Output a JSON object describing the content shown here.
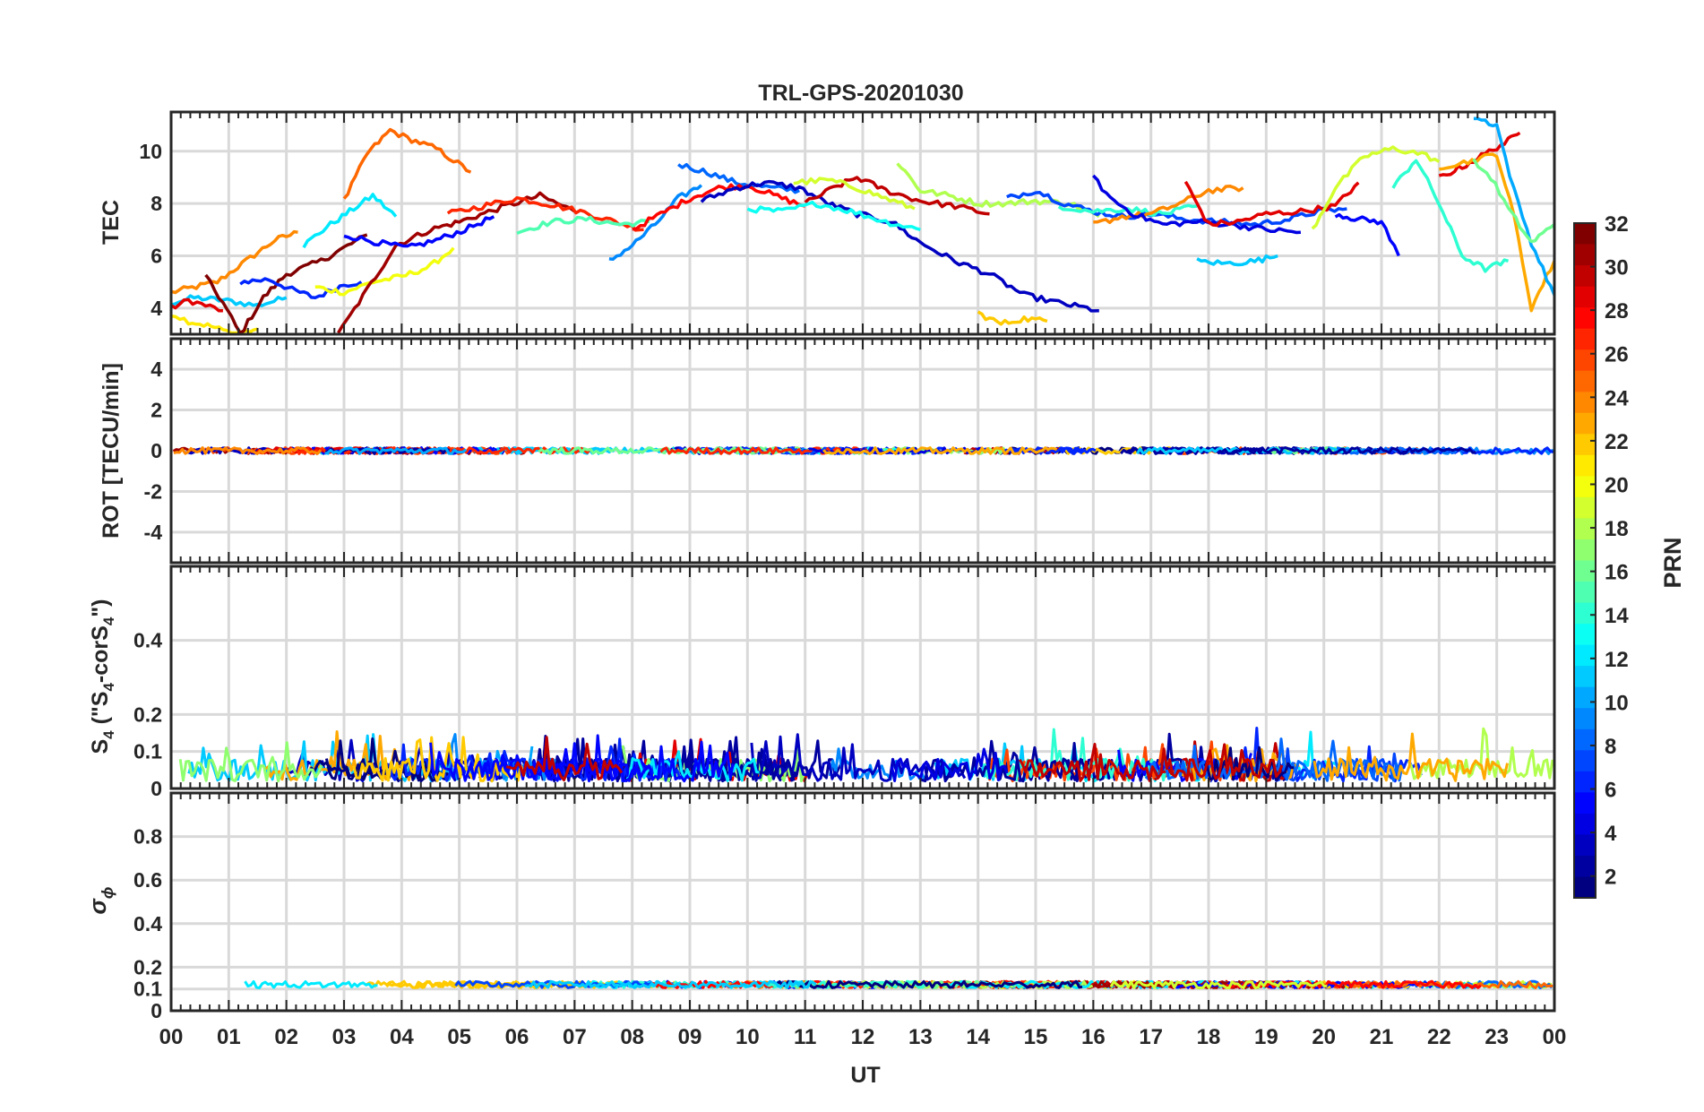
{
  "figure": {
    "title": "TRL-GPS-20201030",
    "xlabel": "UT",
    "x_ticks": [
      "00",
      "01",
      "02",
      "03",
      "04",
      "05",
      "06",
      "07",
      "08",
      "09",
      "10",
      "11",
      "12",
      "13",
      "14",
      "15",
      "16",
      "17",
      "18",
      "19",
      "20",
      "21",
      "22",
      "23",
      "00"
    ],
    "colorbar": {
      "label": "PRN",
      "range": [
        1,
        32
      ],
      "ticks": [
        "32",
        "30",
        "28",
        "26",
        "24",
        "22",
        "20",
        "18",
        "16",
        "14",
        "12",
        "10",
        "8",
        "6",
        "4",
        "2"
      ],
      "colormap": "jet"
    }
  },
  "chart_data": [
    {
      "type": "line",
      "id": "tec",
      "ylabel": "TEC",
      "ylim": [
        3,
        11.5
      ],
      "y_ticks": [
        "10",
        "8",
        "6",
        "4"
      ],
      "xlim_hours": [
        0,
        24
      ],
      "series": [
        {
          "prn": 24,
          "t": [
            0.0,
            0.8,
            1.3,
            1.8,
            2.2
          ],
          "v": [
            4.6,
            5.0,
            5.8,
            6.6,
            6.9
          ]
        },
        {
          "prn": 11,
          "t": [
            0.0,
            0.4,
            0.9,
            1.5,
            2.0
          ],
          "v": [
            4.2,
            4.4,
            4.3,
            4.1,
            4.4
          ]
        },
        {
          "prn": 21,
          "t": [
            0.0,
            0.3,
            0.7,
            1.1,
            1.5
          ],
          "v": [
            3.8,
            3.5,
            3.3,
            3.0,
            3.2
          ]
        },
        {
          "prn": 29,
          "t": [
            0.0,
            0.3,
            0.6,
            0.9
          ],
          "v": [
            4.0,
            4.3,
            4.1,
            3.9
          ]
        },
        {
          "prn": 32,
          "t": [
            0.6,
            0.9,
            1.2,
            1.6,
            2.0,
            2.6,
            3.0,
            3.4
          ],
          "v": [
            5.2,
            4.2,
            3.0,
            4.4,
            5.3,
            5.8,
            6.3,
            6.8
          ]
        },
        {
          "prn": 6,
          "t": [
            1.2,
            1.7,
            2.1,
            2.5,
            3.0,
            3.3
          ],
          "v": [
            5.0,
            5.1,
            4.7,
            4.4,
            4.9,
            5.0
          ]
        },
        {
          "prn": 12,
          "t": [
            2.3,
            2.7,
            3.1,
            3.5,
            3.9
          ],
          "v": [
            6.4,
            7.1,
            7.7,
            8.3,
            7.5
          ]
        },
        {
          "prn": 20,
          "t": [
            2.5,
            3.0,
            3.5,
            4.0,
            4.5,
            4.9
          ],
          "v": [
            4.8,
            4.6,
            5.0,
            5.2,
            5.6,
            6.3
          ]
        },
        {
          "prn": 25,
          "t": [
            3.0,
            3.4,
            3.8,
            4.1,
            4.6,
            5.2
          ],
          "v": [
            8.1,
            9.9,
            10.8,
            10.5,
            10.1,
            9.2
          ]
        },
        {
          "prn": 31,
          "t": [
            2.9,
            3.4,
            3.9,
            4.5,
            5.0,
            5.8,
            6.4,
            7.0
          ],
          "v": [
            3.0,
            4.7,
            6.4,
            7.0,
            7.3,
            7.9,
            8.3,
            7.7
          ]
        },
        {
          "prn": 5,
          "t": [
            3.0,
            3.6,
            4.1,
            4.6,
            5.1,
            5.6
          ],
          "v": [
            6.8,
            6.5,
            6.3,
            6.6,
            7.0,
            7.5
          ]
        },
        {
          "prn": 27,
          "t": [
            4.8,
            5.4,
            6.0,
            6.5,
            7.1,
            7.7,
            8.2
          ],
          "v": [
            7.6,
            7.9,
            8.2,
            8.0,
            7.7,
            7.3,
            7.0
          ]
        },
        {
          "prn": 15,
          "t": [
            6.0,
            6.6,
            7.2,
            7.8,
            8.3
          ],
          "v": [
            6.9,
            7.3,
            7.4,
            7.2,
            7.3
          ]
        },
        {
          "prn": 9,
          "t": [
            7.6,
            8.0,
            8.4,
            8.8,
            9.2
          ],
          "v": [
            5.8,
            6.4,
            7.2,
            8.2,
            8.7
          ]
        },
        {
          "prn": 8,
          "t": [
            8.8,
            9.3,
            9.8,
            10.4,
            10.9
          ],
          "v": [
            9.5,
            9.2,
            8.8,
            8.6,
            8.5
          ]
        },
        {
          "prn": 28,
          "t": [
            8.0,
            8.5,
            9.0,
            9.5,
            10.0,
            10.6,
            11.0
          ],
          "v": [
            7.0,
            7.6,
            8.2,
            8.6,
            8.7,
            8.2,
            7.9
          ]
        },
        {
          "prn": 3,
          "t": [
            9.2,
            9.8,
            10.3,
            10.9,
            11.4,
            11.9,
            12.5,
            13.0,
            13.6,
            14.2,
            14.8,
            15.4,
            16.1
          ],
          "v": [
            8.1,
            8.6,
            8.8,
            8.6,
            8.0,
            7.6,
            7.3,
            6.5,
            5.8,
            5.3,
            4.5,
            4.2,
            3.9
          ]
        },
        {
          "prn": 30,
          "t": [
            11.0,
            11.5,
            11.9,
            12.4,
            13.0,
            13.6,
            14.2
          ],
          "v": [
            8.0,
            8.6,
            9.0,
            8.5,
            8.1,
            7.9,
            7.6
          ]
        },
        {
          "prn": 19,
          "t": [
            10.8,
            11.4,
            11.9,
            12.4,
            12.9
          ],
          "v": [
            8.8,
            8.9,
            8.6,
            8.2,
            7.8
          ]
        },
        {
          "prn": 13,
          "t": [
            10.0,
            10.6,
            11.2,
            11.8,
            12.4,
            13.0
          ],
          "v": [
            7.8,
            7.7,
            8.0,
            7.7,
            7.3,
            7.0
          ]
        },
        {
          "prn": 18,
          "t": [
            12.6,
            13.0,
            13.5,
            14.0,
            14.5,
            15.0,
            15.6,
            16.1
          ],
          "v": [
            9.6,
            8.5,
            8.3,
            8.0,
            8.0,
            8.1,
            8.0,
            7.5
          ]
        },
        {
          "prn": 7,
          "t": [
            14.5,
            15.0,
            15.5,
            16.0,
            16.5,
            17.0,
            17.6,
            18.2,
            18.8,
            19.4,
            19.9,
            20.4
          ],
          "v": [
            8.2,
            8.5,
            8.0,
            7.7,
            7.5,
            7.6,
            7.4,
            7.3,
            7.2,
            7.4,
            7.7,
            7.8
          ]
        },
        {
          "prn": 22,
          "t": [
            14.0,
            14.4,
            14.8,
            15.2
          ],
          "v": [
            3.8,
            3.4,
            3.6,
            3.5
          ]
        },
        {
          "prn": 14,
          "t": [
            15.4,
            16.0,
            16.6,
            17.2,
            17.8
          ],
          "v": [
            7.9,
            7.7,
            7.8,
            7.6,
            7.9
          ]
        },
        {
          "prn": 24,
          "t": [
            16.0,
            16.5,
            17.0,
            17.5,
            18.0,
            18.6
          ],
          "v": [
            7.2,
            7.5,
            7.6,
            8.0,
            8.5,
            8.6
          ]
        },
        {
          "prn": 4,
          "t": [
            16.0,
            16.3,
            16.7,
            17.2,
            17.8,
            18.4,
            19.0,
            19.6
          ],
          "v": [
            9.0,
            8.2,
            7.6,
            7.2,
            7.3,
            7.2,
            7.0,
            6.9
          ]
        },
        {
          "prn": 29,
          "t": [
            17.6,
            18.0,
            18.5,
            19.0,
            19.6,
            20.2,
            20.6
          ],
          "v": [
            8.8,
            7.2,
            7.3,
            7.6,
            7.7,
            7.9,
            8.8
          ]
        },
        {
          "prn": 11,
          "t": [
            17.8,
            18.3,
            18.8,
            19.2
          ],
          "v": [
            5.8,
            5.7,
            5.8,
            6.0
          ]
        },
        {
          "prn": 5,
          "t": [
            20.2,
            20.6,
            21.0,
            21.3
          ],
          "v": [
            7.6,
            7.4,
            7.3,
            6.0
          ]
        },
        {
          "prn": 19,
          "t": [
            19.8,
            20.2,
            20.7,
            21.2,
            21.7,
            22.0
          ],
          "v": [
            7.0,
            8.6,
            9.8,
            10.1,
            9.9,
            9.6
          ]
        },
        {
          "prn": 14,
          "t": [
            21.2,
            21.6,
            22.0,
            22.4,
            22.8,
            23.2
          ],
          "v": [
            8.6,
            9.7,
            8.0,
            6.0,
            5.5,
            5.8
          ]
        },
        {
          "prn": 29,
          "t": [
            22.0,
            22.4,
            22.8,
            23.2,
            23.4
          ],
          "v": [
            9.0,
            9.4,
            9.9,
            10.4,
            10.7
          ]
        },
        {
          "prn": 23,
          "t": [
            22.0,
            22.5,
            23.0,
            23.3,
            23.6,
            24.0
          ],
          "v": [
            9.4,
            9.6,
            9.9,
            7.5,
            4.0,
            5.8
          ]
        },
        {
          "prn": 10,
          "t": [
            22.6,
            23.0,
            23.3,
            23.6,
            24.0
          ],
          "v": [
            11.3,
            11.0,
            8.5,
            6.5,
            4.5
          ]
        },
        {
          "prn": 16,
          "t": [
            22.6,
            22.9,
            23.2,
            23.6,
            24.0
          ],
          "v": [
            9.6,
            9.0,
            7.8,
            6.5,
            7.2
          ]
        }
      ]
    },
    {
      "type": "line",
      "id": "rot",
      "ylabel": "ROT [TECU/min]",
      "ylim": [
        -5.5,
        5.5
      ],
      "y_ticks": [
        "4",
        "2",
        "0",
        "-2",
        "-4"
      ],
      "xlim_hours": [
        0,
        24
      ],
      "noise": {
        "center": 0.0,
        "amplitude": 0.15
      }
    },
    {
      "type": "line",
      "id": "s4",
      "ylabel_main": "S",
      "ylabel_sub": "4",
      "ylabel_tail_a": " (\"S",
      "ylabel_tail_b": "-corS",
      "ylabel_tail_c": "\")",
      "ylim": [
        0,
        0.6
      ],
      "y_ticks": [
        "0.4",
        "0.2",
        "0.1",
        "0"
      ],
      "xlim_hours": [
        0,
        24
      ],
      "noise": {
        "center": 0.05,
        "amplitude": 0.12
      }
    },
    {
      "type": "line",
      "id": "sigma",
      "ylabel_main": "σ",
      "ylabel_sub": "ϕ",
      "ylim": [
        0,
        1.0
      ],
      "y_ticks": [
        "0.8",
        "0.6",
        "0.4",
        "0.2",
        "0.1",
        "0"
      ],
      "xlim_hours": [
        0,
        24
      ],
      "noise": {
        "center": 0.12,
        "amplitude": 0.03
      }
    }
  ]
}
